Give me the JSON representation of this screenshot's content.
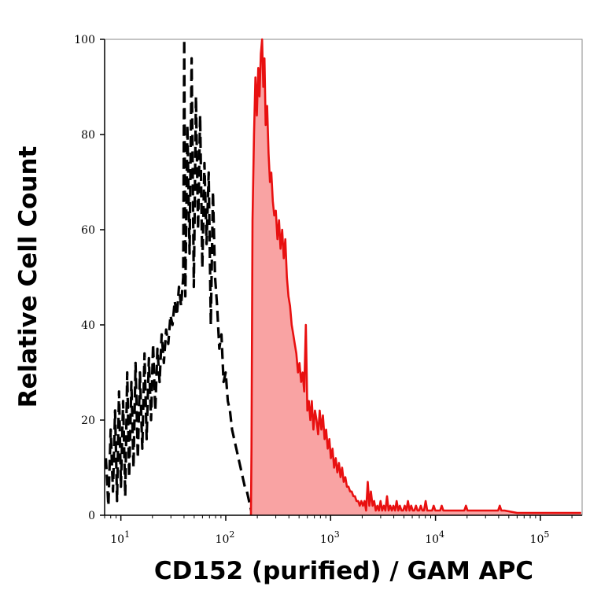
{
  "chart_data": {
    "type": "area",
    "xlabel": "CD152 (purified) / GAM APC",
    "ylabel": "Relative Cell Count",
    "x_scale": "log",
    "xlim": [
      7,
      250000
    ],
    "ylim": [
      0,
      100
    ],
    "x_ticks": [
      {
        "value": 10,
        "base": "10",
        "exp": "1"
      },
      {
        "value": 100,
        "base": "10",
        "exp": "2"
      },
      {
        "value": 1000,
        "base": "10",
        "exp": "3"
      },
      {
        "value": 10000,
        "base": "10",
        "exp": "4"
      },
      {
        "value": 100000,
        "base": "10",
        "exp": "5"
      }
    ],
    "y_ticks": [
      {
        "value": 0,
        "label": "0"
      },
      {
        "value": 20,
        "label": "20"
      },
      {
        "value": 40,
        "label": "40"
      },
      {
        "value": 60,
        "label": "60"
      },
      {
        "value": 80,
        "label": "80"
      },
      {
        "value": 100,
        "label": "100"
      }
    ],
    "grid": false,
    "series": [
      {
        "style": "dashed",
        "color": "#000000",
        "fill": "none",
        "points": [
          [
            7.2,
            12
          ],
          [
            7.6,
            2
          ],
          [
            8.0,
            18
          ],
          [
            8.4,
            5
          ],
          [
            8.8,
            22
          ],
          [
            9.2,
            3
          ],
          [
            9.6,
            26
          ],
          [
            10.0,
            6
          ],
          [
            10.5,
            24
          ],
          [
            11.0,
            4
          ],
          [
            11.5,
            30
          ],
          [
            12.0,
            8
          ],
          [
            12.6,
            28
          ],
          [
            13.2,
            10
          ],
          [
            13.8,
            32
          ],
          [
            14.5,
            12
          ],
          [
            15.2,
            30
          ],
          [
            16.0,
            14
          ],
          [
            16.8,
            34
          ],
          [
            17.6,
            16
          ],
          [
            18.5,
            33
          ],
          [
            19.4,
            20
          ],
          [
            20.3,
            36
          ],
          [
            21.3,
            22
          ],
          [
            22.3,
            35
          ],
          [
            23.4,
            28
          ],
          [
            24.5,
            38
          ],
          [
            25.7,
            32
          ],
          [
            27.0,
            39
          ],
          [
            28.3,
            36
          ],
          [
            29.7,
            42
          ],
          [
            31.1,
            40
          ],
          [
            32.6,
            45
          ],
          [
            34.2,
            42
          ],
          [
            35.8,
            48
          ],
          [
            37.5,
            44
          ],
          [
            39.3,
            50
          ],
          [
            40.2,
            100
          ],
          [
            41.2,
            46
          ],
          [
            43.1,
            82
          ],
          [
            45.2,
            55
          ],
          [
            47.3,
            96
          ],
          [
            49.6,
            48
          ],
          [
            52.0,
            88
          ],
          [
            54.5,
            60
          ],
          [
            57.0,
            84
          ],
          [
            59.8,
            52
          ],
          [
            62.6,
            74
          ],
          [
            65.6,
            57
          ],
          [
            68.8,
            72
          ],
          [
            72.0,
            40
          ],
          [
            75.5,
            68
          ],
          [
            79.1,
            50
          ],
          [
            82.8,
            44
          ],
          [
            86.8,
            35
          ],
          [
            90.9,
            38
          ],
          [
            95.3,
            28
          ],
          [
            99.8,
            30
          ],
          [
            104.6,
            24
          ],
          [
            109.6,
            22
          ],
          [
            114.8,
            18
          ],
          [
            120.3,
            16
          ],
          [
            126.0,
            14
          ],
          [
            132.0,
            12
          ],
          [
            138.3,
            10
          ],
          [
            145.0,
            8
          ],
          [
            151.9,
            6
          ],
          [
            159.2,
            5
          ],
          [
            166.8,
            3
          ],
          [
            174.7,
            1
          ],
          [
            183.0,
            0
          ]
        ]
      },
      {
        "style": "solid",
        "color": "#e81010",
        "fill": "#f9a3a3",
        "points": [
          [
            174,
            0
          ],
          [
            176,
            14
          ],
          [
            180,
            62
          ],
          [
            186,
            80
          ],
          [
            192,
            92
          ],
          [
            198,
            84
          ],
          [
            204,
            94
          ],
          [
            210,
            88
          ],
          [
            216,
            97
          ],
          [
            222,
            100
          ],
          [
            228,
            90
          ],
          [
            234,
            96
          ],
          [
            240,
            82
          ],
          [
            248,
            86
          ],
          [
            256,
            76
          ],
          [
            264,
            70
          ],
          [
            272,
            72
          ],
          [
            281,
            66
          ],
          [
            290,
            63
          ],
          [
            300,
            64
          ],
          [
            311,
            58
          ],
          [
            322,
            62
          ],
          [
            333,
            56
          ],
          [
            345,
            60
          ],
          [
            357,
            54
          ],
          [
            370,
            58
          ],
          [
            383,
            50
          ],
          [
            396,
            46
          ],
          [
            410,
            44
          ],
          [
            425,
            40
          ],
          [
            440,
            38
          ],
          [
            455,
            36
          ],
          [
            471,
            34
          ],
          [
            488,
            30
          ],
          [
            505,
            32
          ],
          [
            523,
            28
          ],
          [
            541,
            30
          ],
          [
            560,
            26
          ],
          [
            580,
            40
          ],
          [
            600,
            22
          ],
          [
            620,
            24
          ],
          [
            640,
            20
          ],
          [
            662,
            24
          ],
          [
            685,
            18
          ],
          [
            709,
            22
          ],
          [
            734,
            20
          ],
          [
            760,
            17
          ],
          [
            787,
            22
          ],
          [
            815,
            18
          ],
          [
            845,
            21
          ],
          [
            875,
            16
          ],
          [
            906,
            18
          ],
          [
            938,
            14
          ],
          [
            972,
            16
          ],
          [
            1006,
            12
          ],
          [
            1042,
            14
          ],
          [
            1079,
            10
          ],
          [
            1118,
            12
          ],
          [
            1158,
            9
          ],
          [
            1200,
            11
          ],
          [
            1243,
            8
          ],
          [
            1287,
            10
          ],
          [
            1333,
            7
          ],
          [
            1381,
            8
          ],
          [
            1430,
            6
          ],
          [
            1481,
            6
          ],
          [
            1534,
            5
          ],
          [
            1589,
            5
          ],
          [
            1646,
            4
          ],
          [
            1705,
            4
          ],
          [
            1766,
            3
          ],
          [
            1829,
            3
          ],
          [
            1894,
            2
          ],
          [
            1962,
            3
          ],
          [
            2032,
            2
          ],
          [
            2105,
            3
          ],
          [
            2180,
            1
          ],
          [
            2258,
            7
          ],
          [
            2339,
            2
          ],
          [
            2423,
            5
          ],
          [
            2510,
            2
          ],
          [
            2600,
            3
          ],
          [
            2693,
            1
          ],
          [
            2790,
            2
          ],
          [
            2890,
            1
          ],
          [
            2994,
            3
          ],
          [
            3101,
            1
          ],
          [
            3213,
            2
          ],
          [
            3328,
            1
          ],
          [
            3448,
            4
          ],
          [
            3572,
            1
          ],
          [
            3700,
            2
          ],
          [
            3833,
            1
          ],
          [
            3971,
            2
          ],
          [
            4114,
            1
          ],
          [
            4262,
            3
          ],
          [
            4415,
            1
          ],
          [
            4574,
            2
          ],
          [
            4738,
            1
          ],
          [
            4909,
            1
          ],
          [
            5085,
            2
          ],
          [
            5268,
            1
          ],
          [
            5458,
            3
          ],
          [
            5654,
            1
          ],
          [
            5858,
            2
          ],
          [
            6069,
            1
          ],
          [
            6287,
            1
          ],
          [
            6513,
            2
          ],
          [
            6747,
            1
          ],
          [
            6990,
            1
          ],
          [
            7242,
            2
          ],
          [
            7502,
            1
          ],
          [
            7772,
            1
          ],
          [
            8052,
            3
          ],
          [
            8342,
            1
          ],
          [
            8642,
            1
          ],
          [
            8953,
            1
          ],
          [
            9275,
            1
          ],
          [
            9609,
            2
          ],
          [
            9955,
            1
          ],
          [
            10313,
            1
          ],
          [
            10684,
            1
          ],
          [
            11069,
            1
          ],
          [
            11467,
            2
          ],
          [
            11880,
            1
          ],
          [
            12307,
            1
          ],
          [
            12751,
            1
          ],
          [
            13210,
            1
          ],
          [
            13685,
            1
          ],
          [
            14178,
            1
          ],
          [
            14688,
            1
          ],
          [
            15217,
            1
          ],
          [
            15765,
            1
          ],
          [
            16332,
            1
          ],
          [
            16920,
            1
          ],
          [
            17529,
            1
          ],
          [
            18160,
            1
          ],
          [
            18814,
            1
          ],
          [
            19491,
            2
          ],
          [
            20193,
            1
          ],
          [
            20920,
            1
          ],
          [
            21673,
            1
          ],
          [
            22453,
            1
          ],
          [
            23261,
            1
          ],
          [
            24099,
            1
          ],
          [
            24966,
            1
          ],
          [
            25865,
            1
          ],
          [
            26796,
            1
          ],
          [
            27761,
            1
          ],
          [
            28760,
            1
          ],
          [
            29796,
            1
          ],
          [
            30868,
            1
          ],
          [
            31980,
            1
          ],
          [
            33131,
            1
          ],
          [
            34324,
            1
          ],
          [
            35559,
            1
          ],
          [
            36840,
            1
          ],
          [
            38166,
            1
          ],
          [
            39540,
            1
          ],
          [
            40963,
            2
          ],
          [
            42438,
            1
          ],
          [
            43966,
            1
          ],
          [
            45549,
            1
          ],
          [
            60000,
            0.5
          ],
          [
            100000,
            0.5
          ],
          [
            150000,
            0.5
          ],
          [
            200000,
            0.5
          ],
          [
            245000,
            0.5
          ]
        ]
      }
    ]
  }
}
